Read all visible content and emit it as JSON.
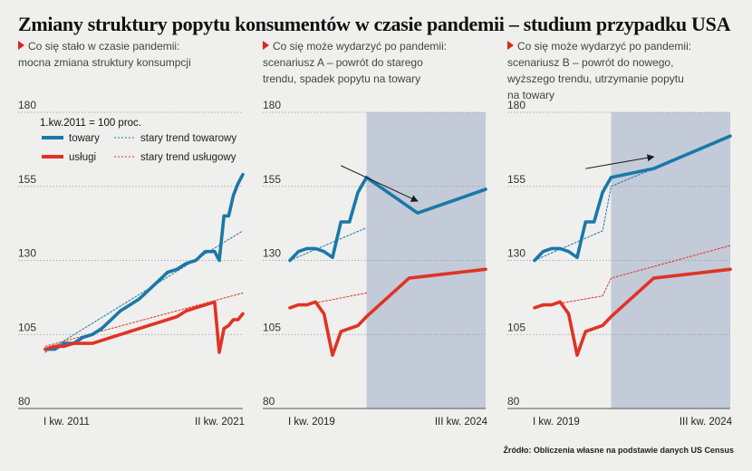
{
  "title": "Zmiany struktury popytu konsumentów w czasie pandemii – studium przypadku USA",
  "source": "Źródło: Obliczenia własne na podstawie danych US Census",
  "colors": {
    "goods": "#1a78a8",
    "services": "#e03325",
    "forecast_band": "#c3cad8",
    "grid": "#9a9a9a",
    "arrow": "#1a1a1a"
  },
  "panels": [
    {
      "description": [
        "Co się stało w czasie pandemii:",
        "mocna zmiana struktury konsumpcji"
      ]
    },
    {
      "description": [
        "Co się może wydarzyć po pandemii:",
        "scenariusz A – powrót do starego",
        "trendu, spadek popytu na towary"
      ]
    },
    {
      "description": [
        "Co się może wydarzyć po pandemii:",
        "scenariusz B – powrót do nowego,",
        "wyższego trendu, utrzymanie popytu",
        "na towary"
      ]
    }
  ],
  "chart_data": [
    {
      "type": "line",
      "ylim": [
        80,
        180
      ],
      "yticks": [
        80,
        105,
        130,
        155,
        180
      ],
      "xlim": [
        2011.0,
        2021.5
      ],
      "xtick_labels": [
        "I kw. 2011",
        "II kw. 2021"
      ],
      "grid": true,
      "note": "1.kw.2011 = 100 proc.",
      "legend": {
        "placement": "top-left",
        "entries": [
          "towary",
          "usługi",
          "stary trend towarowy",
          "stary trend usługowy"
        ]
      },
      "series": [
        {
          "name": "towary",
          "style": "solid",
          "color": "goods",
          "x": [
            2011.0,
            2011.5,
            2012.0,
            2012.5,
            2013.0,
            2013.5,
            2014.0,
            2014.5,
            2015.0,
            2015.5,
            2016.0,
            2016.5,
            2017.0,
            2017.5,
            2018.0,
            2018.5,
            2019.0,
            2019.5,
            2020.0,
            2020.25,
            2020.5,
            2020.75,
            2021.0,
            2021.25,
            2021.5
          ],
          "y": [
            100,
            100,
            102,
            102,
            104,
            105,
            107,
            110,
            113,
            115,
            117,
            120,
            123,
            126,
            127,
            129,
            130,
            133,
            133,
            130,
            145,
            145,
            152,
            156,
            159
          ]
        },
        {
          "name": "usługi",
          "style": "solid",
          "color": "services",
          "x": [
            2011.0,
            2011.5,
            2012.0,
            2012.5,
            2013.0,
            2013.5,
            2014.0,
            2014.5,
            2015.0,
            2015.5,
            2016.0,
            2016.5,
            2017.0,
            2017.5,
            2018.0,
            2018.5,
            2019.0,
            2019.5,
            2020.0,
            2020.25,
            2020.5,
            2020.75,
            2021.0,
            2021.25,
            2021.5
          ],
          "y": [
            100,
            101,
            101,
            102,
            102,
            102,
            103,
            104,
            105,
            106,
            107,
            108,
            109,
            110,
            111,
            113,
            114,
            115,
            116,
            99,
            107,
            108,
            110,
            110,
            112
          ]
        },
        {
          "name": "stary trend towarowy",
          "style": "dotted",
          "color": "goods",
          "x": [
            2011.0,
            2021.5
          ],
          "y": [
            99,
            140
          ]
        },
        {
          "name": "stary trend usługowy",
          "style": "dotted",
          "color": "services",
          "x": [
            2011.0,
            2021.5
          ],
          "y": [
            101,
            119
          ]
        }
      ]
    },
    {
      "type": "line",
      "ylim": [
        80,
        180
      ],
      "yticks": [
        80,
        105,
        130,
        155,
        180
      ],
      "xlim": [
        2019.0,
        2024.75
      ],
      "xtick_labels": [
        "I kw. 2019",
        "III kw. 2024"
      ],
      "grid": true,
      "shaded_region": [
        2021.25,
        2024.75
      ],
      "series": [
        {
          "name": "towary",
          "style": "solid",
          "color": "goods",
          "x": [
            2019.0,
            2019.25,
            2019.5,
            2019.75,
            2020.0,
            2020.25,
            2020.5,
            2020.75,
            2021.0,
            2021.25,
            2022.75,
            2024.75
          ],
          "y": [
            130,
            133,
            134,
            134,
            133,
            131,
            143,
            143,
            153,
            158,
            146,
            154
          ]
        },
        {
          "name": "usługi",
          "style": "solid",
          "color": "services",
          "x": [
            2019.0,
            2019.25,
            2019.5,
            2019.75,
            2020.0,
            2020.25,
            2020.5,
            2020.75,
            2021.0,
            2021.25,
            2022.5,
            2024.75
          ],
          "y": [
            114,
            115,
            115,
            116,
            112,
            98,
            106,
            107,
            108,
            111,
            124,
            127
          ]
        },
        {
          "name": "stary trend towarowy",
          "style": "dotted",
          "color": "goods",
          "x": [
            2019.0,
            2021.25
          ],
          "y": [
            130,
            141
          ]
        },
        {
          "name": "stary trend usługowy",
          "style": "dotted",
          "color": "services",
          "x": [
            2019.0,
            2021.25
          ],
          "y": [
            114,
            119
          ]
        }
      ],
      "annotations": [
        {
          "type": "arrow",
          "from": [
            2020.5,
            162
          ],
          "to": [
            2022.75,
            150
          ]
        }
      ]
    },
    {
      "type": "line",
      "ylim": [
        80,
        180
      ],
      "yticks": [
        80,
        105,
        130,
        155,
        180
      ],
      "xlim": [
        2019.0,
        2024.75
      ],
      "xtick_labels": [
        "I kw. 2019",
        "III kw. 2024"
      ],
      "grid": true,
      "shaded_region": [
        2021.25,
        2024.75
      ],
      "series": [
        {
          "name": "towary",
          "style": "solid",
          "color": "goods",
          "x": [
            2019.0,
            2019.25,
            2019.5,
            2019.75,
            2020.0,
            2020.25,
            2020.5,
            2020.75,
            2021.0,
            2021.25,
            2022.5,
            2024.75
          ],
          "y": [
            130,
            133,
            134,
            134,
            133,
            131,
            143,
            143,
            153,
            158,
            161,
            172
          ]
        },
        {
          "name": "usługi",
          "style": "solid",
          "color": "services",
          "x": [
            2019.0,
            2019.25,
            2019.5,
            2019.75,
            2020.0,
            2020.25,
            2020.5,
            2020.75,
            2021.0,
            2021.25,
            2022.5,
            2024.75
          ],
          "y": [
            114,
            115,
            115,
            116,
            112,
            98,
            106,
            107,
            108,
            111,
            124,
            127
          ]
        },
        {
          "name": "stary trend towarowy",
          "style": "dotted",
          "color": "goods",
          "x": [
            2019.0,
            2021.0,
            2021.25,
            2022.5
          ],
          "y": [
            130,
            140,
            155,
            161
          ]
        },
        {
          "name": "stary trend usługowy",
          "style": "dotted",
          "color": "services",
          "x": [
            2019.0,
            2021.0,
            2021.25,
            2024.75
          ],
          "y": [
            114,
            118,
            124,
            135
          ]
        }
      ],
      "annotations": [
        {
          "type": "arrow",
          "from": [
            2020.5,
            161
          ],
          "to": [
            2022.5,
            165
          ]
        }
      ]
    }
  ]
}
